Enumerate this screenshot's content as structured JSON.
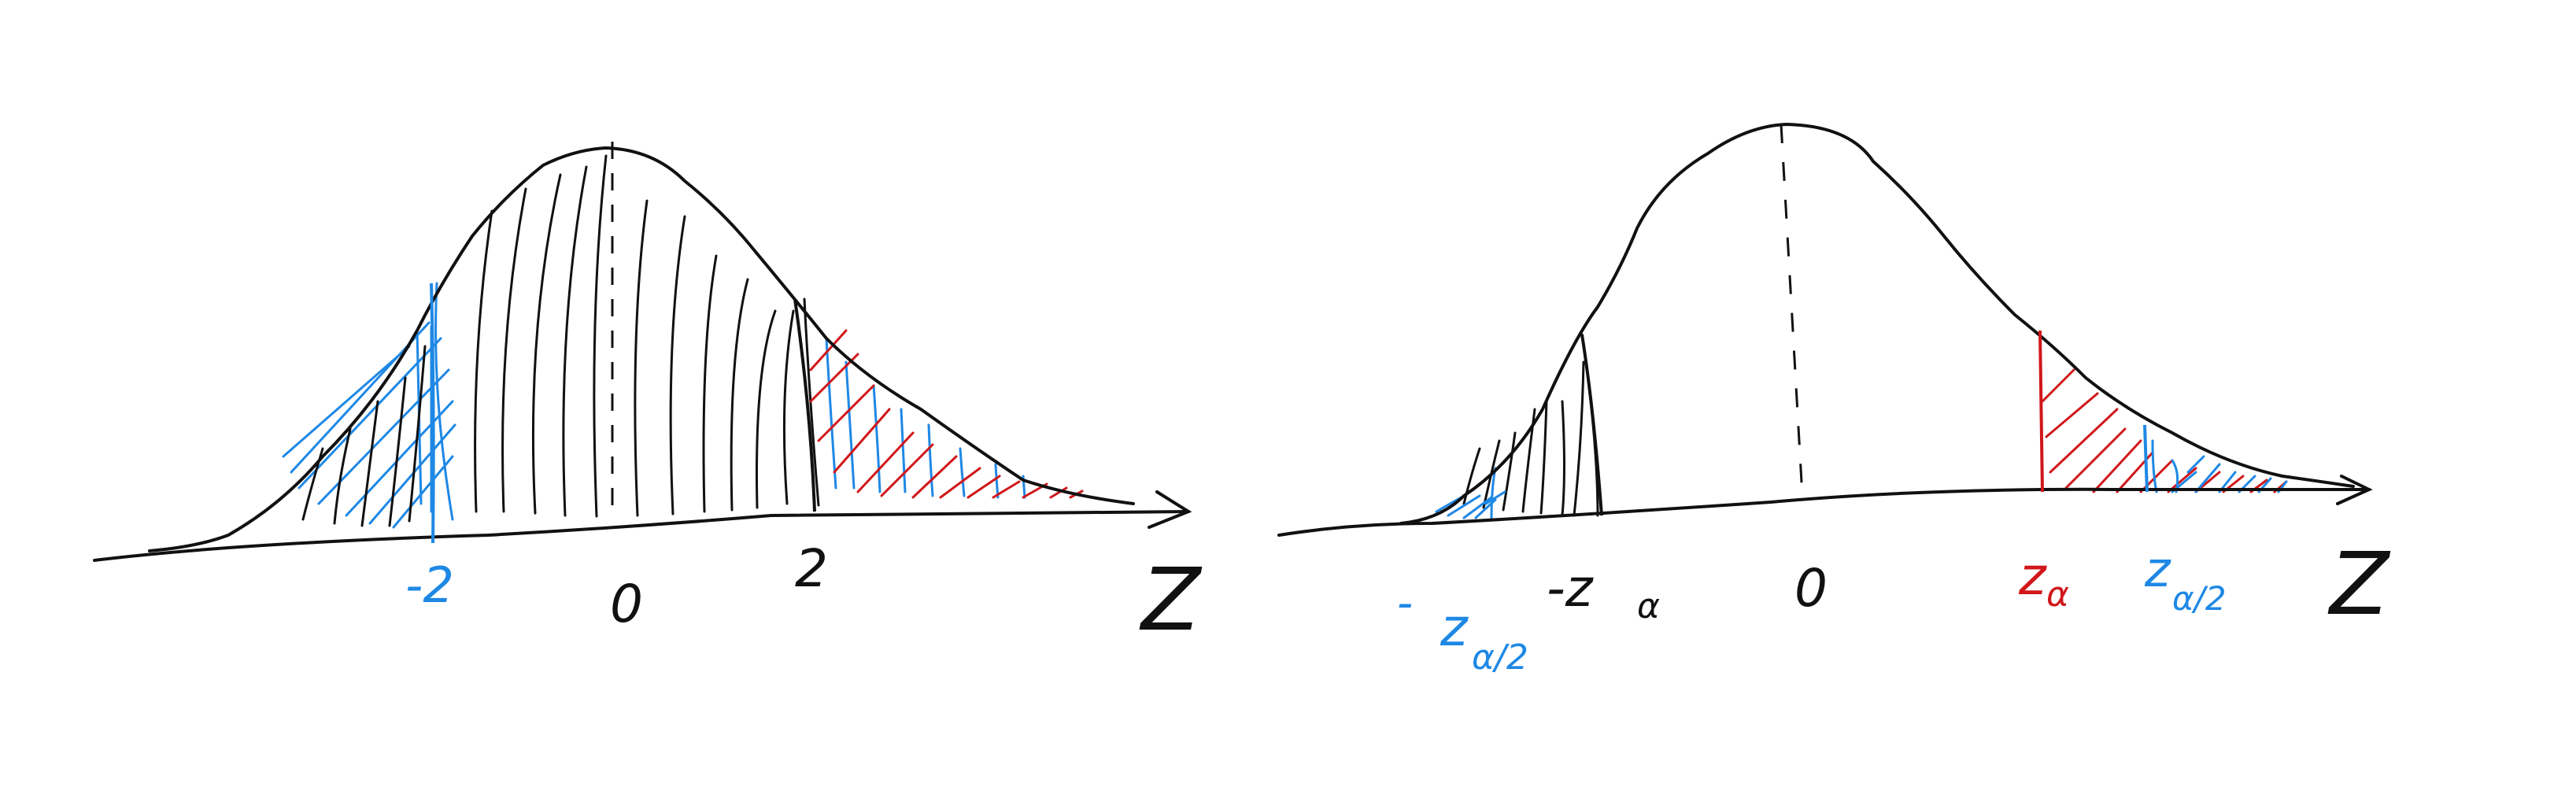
{
  "colors": {
    "ink": "#111111",
    "blue": "#1e88e5",
    "red": "#d0171b",
    "background": "#ffffff"
  },
  "left_panel": {
    "axis_label": "Z",
    "ticks": {
      "neg": "-2",
      "zero": "0",
      "pos": "2"
    }
  },
  "right_panel": {
    "axis_label": "Z",
    "ticks": {
      "neg_z_half_alpha_prefix": "-",
      "neg_z_half_alpha_main": "z",
      "neg_z_half_alpha_sub": "α/2",
      "neg_z_alpha": "-z",
      "neg_z_alpha_sub": "α",
      "zero": "0",
      "z_alpha": "z",
      "z_alpha_sub": "α",
      "z_half_alpha": "z",
      "z_half_alpha_sub": "α/2"
    }
  }
}
